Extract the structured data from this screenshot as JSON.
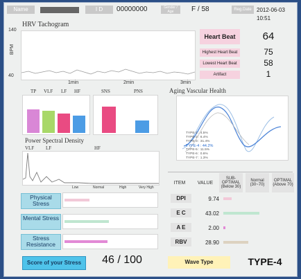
{
  "header": {
    "name_label": "Name",
    "id_label": "I  D",
    "id_value": "00000000",
    "gender_age_label": "Gender / Age",
    "gender_age_value": "F    /  58",
    "reg_date_label": "Reg.Date",
    "reg_date_value": "2012-06-03 10:51"
  },
  "tachogram": {
    "title": "HRV Tachogram",
    "ylabel": "BPM",
    "y_ticks": [
      "140",
      "40"
    ],
    "x_ticks": [
      "1min",
      "2min",
      "3min"
    ]
  },
  "heart": {
    "heart_beat_label": "Heart Beat",
    "heart_beat_value": "64",
    "highest_label": "Highest Heart Beat",
    "highest_value": "75",
    "lowest_label": "Lowest Heart Beat",
    "lowest_value": "58",
    "artifact_label": "Artifact",
    "artifact_value": "1"
  },
  "ans_bars": {
    "labels": [
      "TP",
      "VLF",
      "LF",
      "HF"
    ],
    "balance_labels": [
      "SNS",
      "PNS"
    ]
  },
  "aging": {
    "title": "Aging Vascular Health",
    "legend": [
      "TYPE-1 : 4.5%",
      "TYPE-2 : 6.4%",
      "TYPE-3 : 31.4%",
      "TYPE-4 : 44.2%",
      "TYPE-5 : 11.5%",
      "TYPE-6 : 0.6%",
      "TYPE-7 : 1.3%"
    ]
  },
  "psd": {
    "title": "Power Spectral Density",
    "band_labels": [
      "VLF",
      "LF",
      "HF"
    ],
    "scale_labels": [
      "Low",
      "Normal",
      "High",
      "Very High"
    ]
  },
  "stress": {
    "physical_label": "Physical Stress",
    "mental_label": "Mental Stress",
    "resistance_label": "Stress Resistance",
    "score_label": "Score of your Stress",
    "score_value": "46 / 100"
  },
  "table": {
    "headers": {
      "item": "ITEM",
      "value": "VALUE",
      "sub_optimal": "SUB-OPTIMAL (Below 30)",
      "normal": "Normal (30~70)",
      "optimal": "OPTIMAL (Above 70)"
    },
    "rows": [
      {
        "item": "DPI",
        "value": "9.74"
      },
      {
        "item": "E C",
        "value": "43.02"
      },
      {
        "item": "A E",
        "value": "2.00"
      },
      {
        "item": "RBV",
        "value": "28.90"
      }
    ]
  },
  "wave": {
    "label": "Wave Type",
    "value": "TYPE-4"
  },
  "colors": {
    "pink": "#e94b82",
    "green": "#a8d868",
    "blue": "#4c9ce5",
    "violet": "#d987d6",
    "mint": "#bfe6d0",
    "beige": "#ddd2c0"
  }
}
